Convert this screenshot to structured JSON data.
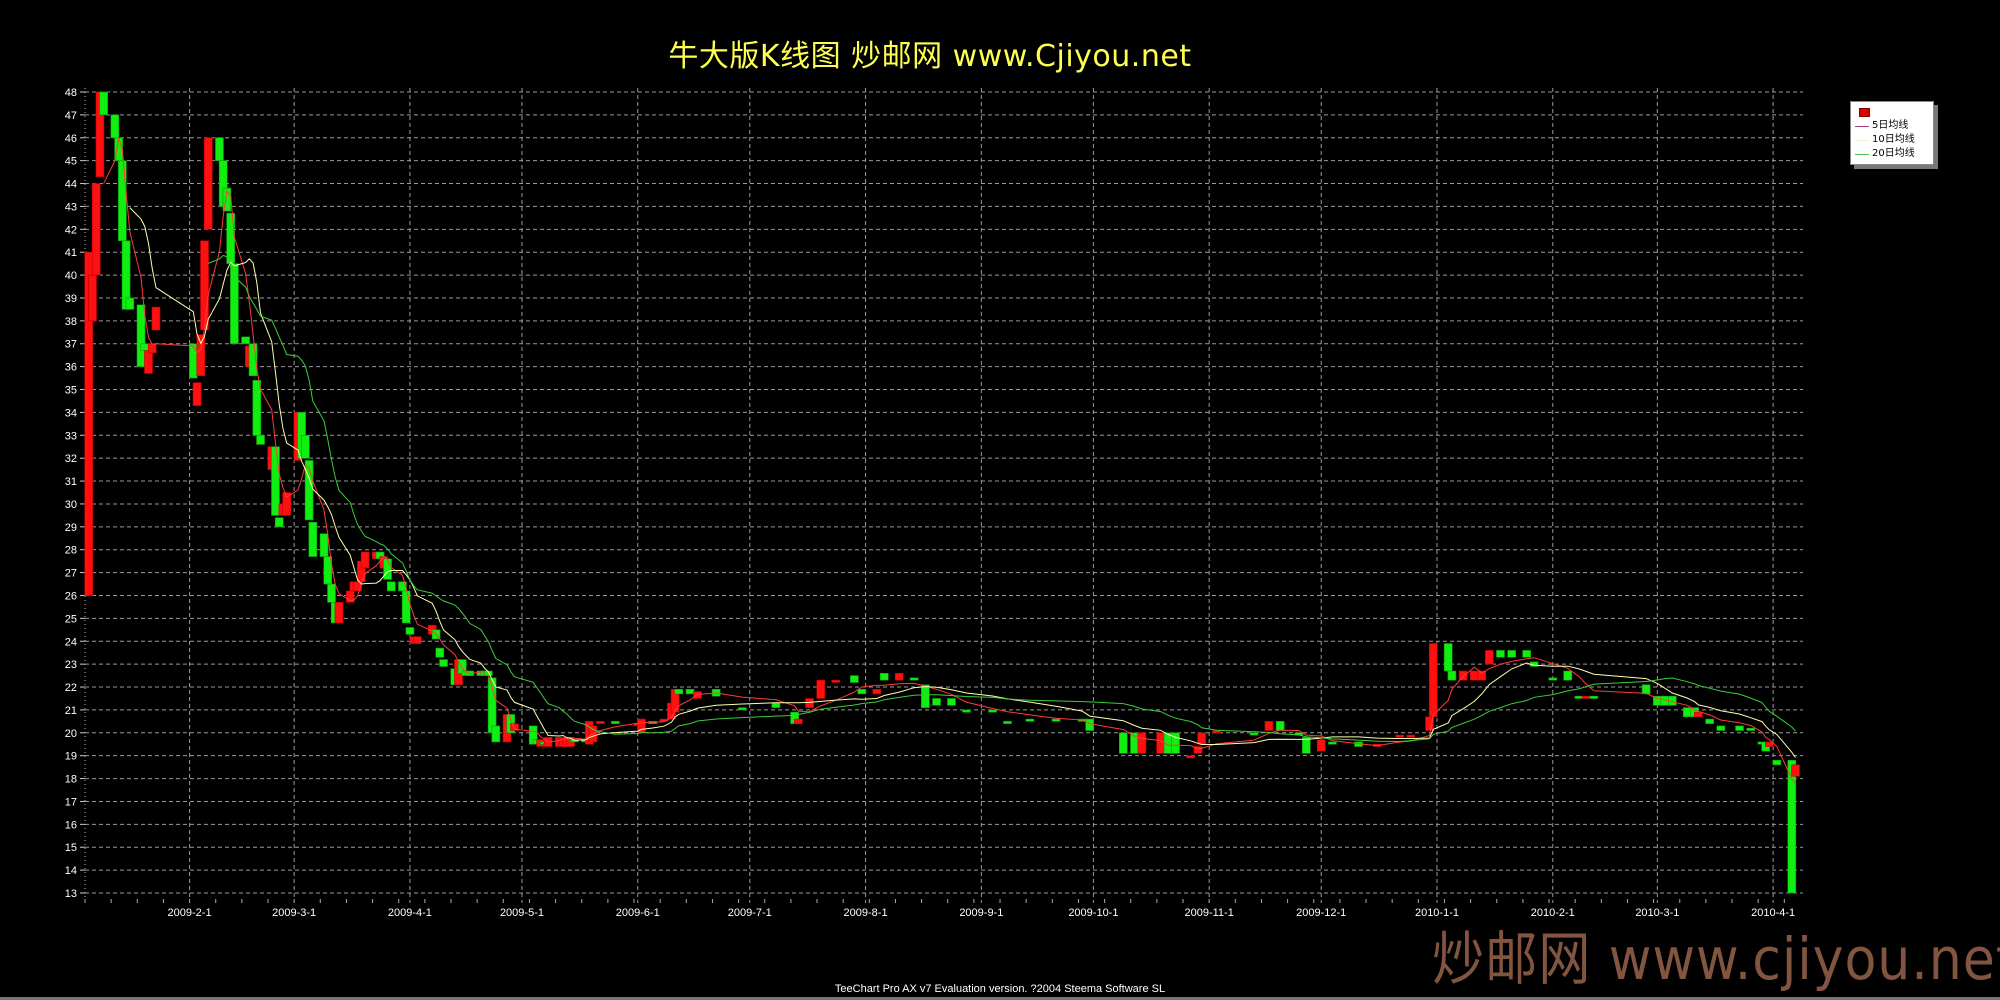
{
  "title": "牛大版K线图  炒邮网 www.Cjiyou.net",
  "legend": {
    "items": [
      {
        "label": "5日均线",
        "color": "#a04080"
      },
      {
        "label": "10日均线",
        "color": "#ffffc0"
      },
      {
        "label": "20日均线",
        "color": "#50c050"
      }
    ]
  },
  "footer": "TeeChart Pro AX v7 Evaluation version. ?2004 Steema Software SL",
  "watermark": "炒邮网 www.cjiyou.net",
  "colors": {
    "up": "#ff1010",
    "down": "#11ee11",
    "grid": "#9a9a9a",
    "ma5": "#ff3a3a",
    "ma10": "#ffffb0",
    "ma20": "#3ccc3c",
    "title": "#ffff50"
  },
  "chart_data": {
    "type": "candlestick",
    "ylim": [
      13,
      48
    ],
    "xlim": [
      "2009-01-04",
      "2010-04-09"
    ],
    "grid": true,
    "legend_position": "top-right",
    "yticks": [
      13,
      14,
      15,
      16,
      17,
      18,
      19,
      20,
      21,
      22,
      23,
      24,
      25,
      26,
      27,
      28,
      29,
      30,
      31,
      32,
      33,
      34,
      35,
      36,
      37,
      38,
      39,
      40,
      41,
      42,
      43,
      44,
      45,
      46,
      47,
      48
    ],
    "xticks": [
      "2009-2-1",
      "2009-3-1",
      "2009-4-1",
      "2009-5-1",
      "2009-6-1",
      "2009-7-1",
      "2009-8-1",
      "2009-9-1",
      "2009-10-1",
      "2009-11-1",
      "2009-12-1",
      "2010-1-1",
      "2010-2-1",
      "2010-3-1",
      "2010-4-1"
    ],
    "moving_averages": [
      {
        "name": "5日均线",
        "period": 5
      },
      {
        "name": "10日均线",
        "period": 10
      },
      {
        "name": "20日均线",
        "period": 20
      }
    ],
    "candle_fields": [
      "date",
      "open",
      "close"
    ],
    "candles": [
      [
        "2009-01-05",
        26,
        41
      ],
      [
        "2009-01-06",
        38,
        40
      ],
      [
        "2009-01-07",
        40,
        44
      ],
      [
        "2009-01-08",
        44.3,
        48
      ],
      [
        "2009-01-09",
        48,
        47
      ],
      [
        "2009-01-12",
        47,
        46
      ],
      [
        "2009-01-13",
        46,
        45
      ],
      [
        "2009-01-14",
        45,
        41.5
      ],
      [
        "2009-01-15",
        41.5,
        38.5
      ],
      [
        "2009-01-16",
        39,
        38.5
      ],
      [
        "2009-01-19",
        38.7,
        36
      ],
      [
        "2009-01-20",
        37,
        36.7
      ],
      [
        "2009-01-21",
        35.7,
        36.7
      ],
      [
        "2009-01-22",
        36.6,
        37
      ],
      [
        "2009-01-23",
        37.6,
        38.6
      ],
      [
        "2009-02-02",
        37,
        35.5
      ],
      [
        "2009-02-03",
        34.3,
        35.3
      ],
      [
        "2009-02-04",
        35.6,
        37.4
      ],
      [
        "2009-02-05",
        37.6,
        41.5
      ],
      [
        "2009-02-06",
        42,
        46
      ],
      [
        "2009-02-09",
        46,
        45
      ],
      [
        "2009-02-10",
        45,
        43
      ],
      [
        "2009-02-11",
        43.8,
        42.8
      ],
      [
        "2009-02-12",
        42.7,
        40.5
      ],
      [
        "2009-02-13",
        40.5,
        37
      ],
      [
        "2009-02-16",
        37.3,
        37
      ],
      [
        "2009-02-17",
        36,
        36.9
      ],
      [
        "2009-02-18",
        37,
        35.6
      ],
      [
        "2009-02-19",
        35.4,
        33
      ],
      [
        "2009-02-20",
        33,
        32.6
      ],
      [
        "2009-02-23",
        31.5,
        32.5
      ],
      [
        "2009-02-24",
        32.5,
        29.5
      ],
      [
        "2009-02-25",
        29.4,
        29
      ],
      [
        "2009-02-26",
        29.5,
        30
      ],
      [
        "2009-02-27",
        29.5,
        30.5
      ],
      [
        "2009-03-02",
        31.9,
        34
      ],
      [
        "2009-03-03",
        34,
        32
      ],
      [
        "2009-03-04",
        33,
        32
      ],
      [
        "2009-03-05",
        31.9,
        29.3
      ],
      [
        "2009-03-06",
        29.2,
        27.7
      ],
      [
        "2009-03-09",
        28.7,
        27.7
      ],
      [
        "2009-03-10",
        27.7,
        26.5
      ],
      [
        "2009-03-11",
        26.5,
        25.7
      ],
      [
        "2009-03-12",
        25.7,
        24.8
      ],
      [
        "2009-03-13",
        24.8,
        25.7
      ],
      [
        "2009-03-16",
        25.7,
        26.2
      ],
      [
        "2009-03-17",
        26.2,
        26.6
      ],
      [
        "2009-03-18",
        26.2,
        26.6
      ],
      [
        "2009-03-19",
        26.6,
        27.5
      ],
      [
        "2009-03-20",
        27.2,
        27.9
      ],
      [
        "2009-03-23",
        27.6,
        27.9
      ],
      [
        "2009-03-24",
        27.9,
        27.6
      ],
      [
        "2009-03-25",
        27.2,
        27.7
      ],
      [
        "2009-03-26",
        27.6,
        26.7
      ],
      [
        "2009-03-27",
        26.6,
        26.2
      ],
      [
        "2009-03-30",
        26.6,
        26.2
      ],
      [
        "2009-03-31",
        26.2,
        24.8
      ],
      [
        "2009-04-01",
        24.6,
        24.3
      ],
      [
        "2009-04-02",
        23.9,
        24.2
      ],
      [
        "2009-04-03",
        23.9,
        24.2
      ],
      [
        "2009-04-07",
        24.3,
        24.7
      ],
      [
        "2009-04-08",
        24.5,
        24.1
      ],
      [
        "2009-04-09",
        23.7,
        23.3
      ],
      [
        "2009-04-10",
        23.2,
        22.9
      ],
      [
        "2009-04-13",
        22.8,
        22.1
      ],
      [
        "2009-04-14",
        22.1,
        23.2
      ],
      [
        "2009-04-15",
        23.2,
        22.6
      ],
      [
        "2009-04-16",
        22.7,
        22.5
      ],
      [
        "2009-04-17",
        22.7,
        22.5
      ],
      [
        "2009-04-20",
        22.7,
        22.5
      ],
      [
        "2009-04-21",
        22.7,
        22.5
      ],
      [
        "2009-04-22",
        22.7,
        22.5
      ],
      [
        "2009-04-23",
        22.4,
        20
      ],
      [
        "2009-04-24",
        20.3,
        19.6
      ],
      [
        "2009-04-27",
        19.6,
        20.8
      ],
      [
        "2009-04-28",
        20.8,
        20
      ],
      [
        "2009-04-29",
        20.1,
        20.4
      ],
      [
        "2009-05-04",
        20.3,
        19.5
      ],
      [
        "2009-05-05",
        19.7,
        19.5
      ],
      [
        "2009-05-06",
        19.4,
        19.7
      ],
      [
        "2009-05-07",
        19.6,
        19.5
      ],
      [
        "2009-05-08",
        19.4,
        19.8
      ],
      [
        "2009-05-11",
        19.4,
        19.8
      ],
      [
        "2009-05-12",
        19.4,
        19.8
      ],
      [
        "2009-05-13",
        19.4,
        19.8
      ],
      [
        "2009-05-14",
        19.4,
        19.8
      ],
      [
        "2009-05-15",
        19.7,
        19.6
      ],
      [
        "2009-05-18",
        19.7,
        19.6
      ],
      [
        "2009-05-19",
        19.5,
        20.5
      ],
      [
        "2009-05-20",
        19.6,
        20.3
      ],
      [
        "2009-05-22",
        20.4,
        20.5
      ],
      [
        "2009-05-26",
        20.5,
        20.4
      ],
      [
        "2009-06-01",
        20.3,
        20.4
      ],
      [
        "2009-06-02",
        20,
        20.6
      ],
      [
        "2009-06-05",
        20.5,
        20.4
      ],
      [
        "2009-06-08",
        20.5,
        20.6
      ],
      [
        "2009-06-10",
        20.6,
        21.3
      ],
      [
        "2009-06-11",
        20.9,
        21.9
      ],
      [
        "2009-06-12",
        21.9,
        21.7
      ],
      [
        "2009-06-15",
        21.9,
        21.7
      ],
      [
        "2009-06-17",
        21.5,
        21.8
      ],
      [
        "2009-06-22",
        21.9,
        21.6
      ],
      [
        "2009-06-29",
        21.1,
        21
      ],
      [
        "2009-07-08",
        21.3,
        21.1
      ],
      [
        "2009-07-13",
        20.9,
        20.4
      ],
      [
        "2009-07-14",
        20.4,
        20.6
      ],
      [
        "2009-07-17",
        21.1,
        21.5
      ],
      [
        "2009-07-20",
        21.5,
        22.3
      ],
      [
        "2009-07-24",
        22.2,
        22.3
      ],
      [
        "2009-07-29",
        22.5,
        22.2
      ],
      [
        "2009-07-31",
        21.9,
        21.7
      ],
      [
        "2009-08-04",
        21.7,
        21.9
      ],
      [
        "2009-08-06",
        22.6,
        22.3
      ],
      [
        "2009-08-10",
        22.3,
        22.6
      ],
      [
        "2009-08-14",
        22.4,
        22.3
      ],
      [
        "2009-08-17",
        22.1,
        21.1
      ],
      [
        "2009-08-20",
        21.5,
        21.2
      ],
      [
        "2009-08-24",
        21.5,
        21.2
      ],
      [
        "2009-08-28",
        21,
        20.9
      ],
      [
        "2009-09-04",
        21,
        20.9
      ],
      [
        "2009-09-08",
        20.5,
        20.4
      ],
      [
        "2009-09-14",
        20.6,
        20.5
      ],
      [
        "2009-09-21",
        20.6,
        20.5
      ],
      [
        "2009-09-28",
        20.6,
        20.5
      ],
      [
        "2009-09-30",
        20.6,
        20.1
      ],
      [
        "2009-10-09",
        20,
        19.1
      ],
      [
        "2009-10-12",
        20,
        19.1
      ],
      [
        "2009-10-14",
        19.1,
        20
      ],
      [
        "2009-10-19",
        19.1,
        20
      ],
      [
        "2009-10-21",
        20,
        19.1
      ],
      [
        "2009-10-23",
        20,
        19.1
      ],
      [
        "2009-10-27",
        18.9,
        19
      ],
      [
        "2009-10-29",
        19.1,
        19.4
      ],
      [
        "2009-10-30",
        19.5,
        20
      ],
      [
        "2009-11-03",
        20,
        20.1
      ],
      [
        "2009-11-13",
        20,
        19.9
      ],
      [
        "2009-11-17",
        20.1,
        20.5
      ],
      [
        "2009-11-20",
        20.5,
        20.1
      ],
      [
        "2009-11-25",
        20,
        19.9
      ],
      [
        "2009-11-27",
        19.8,
        19.1
      ],
      [
        "2009-12-01",
        19.2,
        19.7
      ],
      [
        "2009-12-04",
        19.6,
        19.5
      ],
      [
        "2009-12-11",
        19.6,
        19.4
      ],
      [
        "2009-12-16",
        19.4,
        19.5
      ],
      [
        "2009-12-22",
        19.8,
        19.9
      ],
      [
        "2009-12-25",
        19.8,
        19.9
      ],
      [
        "2009-12-30",
        20.1,
        20.7
      ],
      [
        "2009-12-31",
        20.7,
        23.9
      ],
      [
        "2010-01-04",
        23.9,
        22.7
      ],
      [
        "2010-01-05",
        22.7,
        22.3
      ],
      [
        "2010-01-08",
        22.3,
        22.7
      ],
      [
        "2010-01-11",
        22.3,
        22.7
      ],
      [
        "2010-01-13",
        22.3,
        22.7
      ],
      [
        "2010-01-15",
        23,
        23.6
      ],
      [
        "2010-01-18",
        23.6,
        23.3
      ],
      [
        "2010-01-21",
        23.6,
        23.3
      ],
      [
        "2010-01-25",
        23.6,
        23.3
      ],
      [
        "2010-01-27",
        23.1,
        22.9
      ],
      [
        "2010-02-01",
        22.4,
        22.3
      ],
      [
        "2010-02-05",
        22.7,
        22.3
      ],
      [
        "2010-02-08",
        21.6,
        21.5
      ],
      [
        "2010-02-10",
        21.5,
        21.6
      ],
      [
        "2010-02-12",
        21.6,
        21.5
      ],
      [
        "2010-02-26",
        22.1,
        21.7
      ],
      [
        "2010-03-01",
        21.6,
        21.2
      ],
      [
        "2010-03-03",
        21.6,
        21.2
      ],
      [
        "2010-03-05",
        21.6,
        21.2
      ],
      [
        "2010-03-09",
        21.1,
        20.7
      ],
      [
        "2010-03-11",
        21.1,
        20.7
      ],
      [
        "2010-03-12",
        20.7,
        20.9
      ],
      [
        "2010-03-15",
        20.6,
        20.4
      ],
      [
        "2010-03-18",
        20.3,
        20.1
      ],
      [
        "2010-03-23",
        20.3,
        20.1
      ],
      [
        "2010-03-26",
        20.2,
        20.1
      ],
      [
        "2010-03-29",
        19.6,
        19.5
      ],
      [
        "2010-03-30",
        19.6,
        19.2
      ],
      [
        "2010-03-31",
        19.4,
        19.6
      ],
      [
        "2010-04-02",
        18.8,
        18.6
      ],
      [
        "2010-04-06",
        18.8,
        13
      ],
      [
        "2010-04-07",
        18.1,
        18.6
      ]
    ]
  }
}
